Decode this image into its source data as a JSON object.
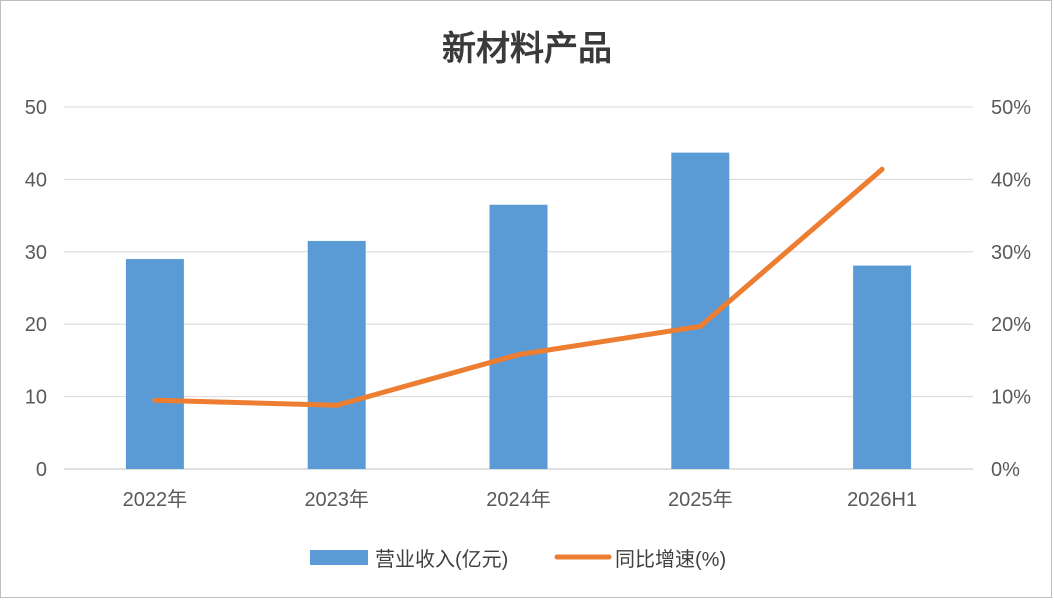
{
  "chart_data": {
    "type": "bar+line",
    "title": "新材料产品",
    "categories": [
      "2022年",
      "2023年",
      "2024年",
      "2025年",
      "2026H1"
    ],
    "series": [
      {
        "name": "营业收入(亿元)",
        "type": "bar",
        "axis": "left",
        "color": "#5b9bd5",
        "values": [
          29.0,
          31.5,
          36.5,
          43.7,
          28.1
        ]
      },
      {
        "name": "同比增速(%)",
        "type": "line",
        "axis": "right",
        "color": "#ed7d31",
        "values": [
          9.5,
          8.8,
          15.8,
          19.7,
          41.4
        ]
      }
    ],
    "y_left": {
      "lim": [
        0,
        50
      ],
      "ticks": [
        "0",
        "10",
        "20",
        "30",
        "40",
        "50"
      ]
    },
    "y_right": {
      "lim": [
        0,
        50
      ],
      "ticks": [
        "0%",
        "10%",
        "20%",
        "30%",
        "40%",
        "50%"
      ]
    },
    "grid": true,
    "legend": "bottom"
  }
}
